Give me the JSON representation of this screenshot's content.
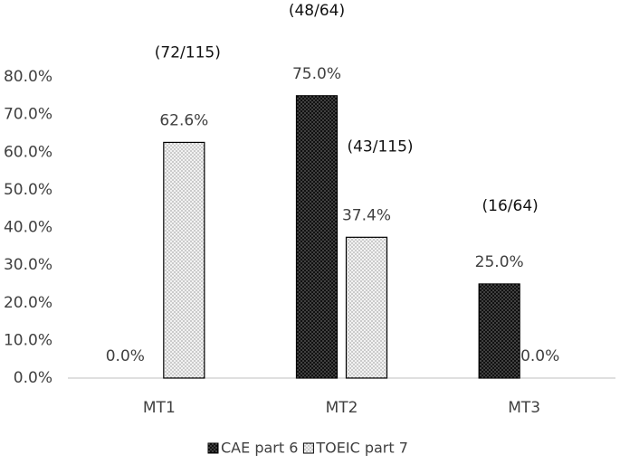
{
  "chart_data": {
    "type": "bar",
    "categories": [
      "MT1",
      "MT2",
      "MT3"
    ],
    "series": [
      {
        "name": "CAE part 6",
        "color": "#111111",
        "values": [
          0,
          75,
          25
        ],
        "value_labels": [
          "0.0%",
          "75.0%",
          "25.0%"
        ]
      },
      {
        "name": "TOEIC part 7",
        "color": "#f2f2f2",
        "values": [
          62.6,
          37.4,
          0
        ],
        "value_labels": [
          "62.6%",
          "37.4%",
          "0.0%"
        ]
      }
    ],
    "annotations": [
      "(72/115)",
      "(48/64)",
      "(43/115)",
      "(16/64)"
    ],
    "ylim": [
      0,
      80
    ],
    "yticks": [
      {
        "value": 0,
        "label": "0.0%"
      },
      {
        "value": 10,
        "label": "10.0%"
      },
      {
        "value": 20,
        "label": "20.0%"
      },
      {
        "value": 30,
        "label": "30.0%"
      },
      {
        "value": 40,
        "label": "40.0%"
      },
      {
        "value": 50,
        "label": "50.0%"
      },
      {
        "value": 60,
        "label": "60.0%"
      },
      {
        "value": 70,
        "label": "70.0%"
      },
      {
        "value": 80,
        "label": "80.0%"
      }
    ],
    "grid": false,
    "legend": "bottom"
  }
}
